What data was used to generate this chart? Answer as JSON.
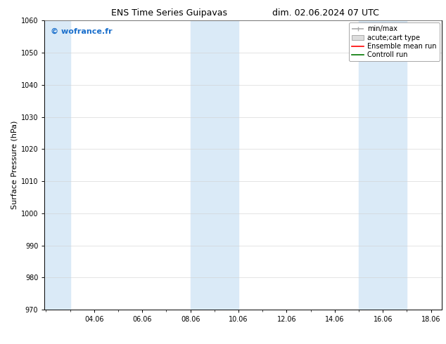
{
  "title_left": "ENS Time Series Guipavas",
  "title_right": "dim. 02.06.2024 07 UTC",
  "ylabel": "Surface Pressure (hPa)",
  "watermark": "© wofrance.fr",
  "watermark_color": "#1a6fcc",
  "xlim": [
    2.0,
    18.5
  ],
  "ylim": [
    970,
    1060
  ],
  "yticks": [
    970,
    980,
    990,
    1000,
    1010,
    1020,
    1030,
    1040,
    1050,
    1060
  ],
  "xtick_positions": [
    4.06,
    6.06,
    8.06,
    10.06,
    12.06,
    14.06,
    16.06,
    18.06
  ],
  "xticklabels": [
    "04.06",
    "06.06",
    "08.06",
    "10.06",
    "12.06",
    "14.06",
    "16.06",
    "18.06"
  ],
  "background_color": "#ffffff",
  "plot_bg_color": "#ffffff",
  "shaded_regions": [
    {
      "xmin": 2.0,
      "xmax": 3.06,
      "color": "#daeaf7"
    },
    {
      "xmin": 8.06,
      "xmax": 10.06,
      "color": "#daeaf7"
    },
    {
      "xmin": 15.06,
      "xmax": 17.06,
      "color": "#daeaf7"
    }
  ],
  "legend_entries": [
    {
      "label": "min/max",
      "color": "#aaaaaa",
      "lw": 1.2
    },
    {
      "label": "acute;cart type",
      "facecolor": "#dddddd",
      "edgecolor": "#aaaaaa"
    },
    {
      "label": "Ensemble mean run",
      "color": "#ff0000",
      "lw": 1.2
    },
    {
      "label": "Controll run",
      "color": "#007700",
      "lw": 1.2
    }
  ],
  "title_fontsize": 9,
  "ylabel_fontsize": 8,
  "tick_fontsize": 7,
  "legend_fontsize": 7,
  "watermark_fontsize": 8
}
